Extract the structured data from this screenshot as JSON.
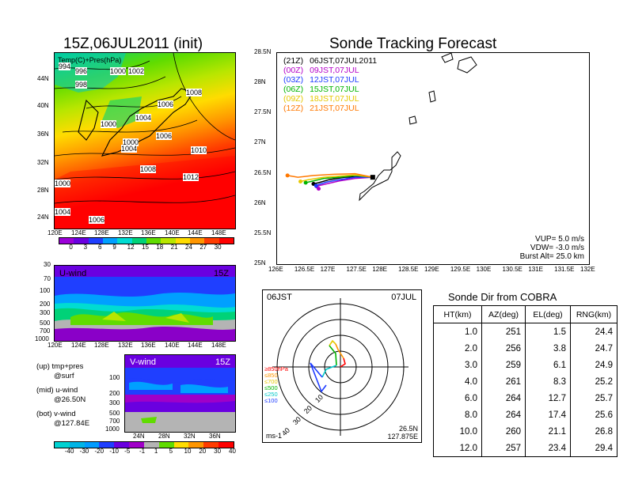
{
  "left_map": {
    "title": "15Z,06JUL2011 (init)",
    "label": "Temp(C)+Pres(hPa)",
    "lat_ticks": [
      "44N",
      "40N",
      "36N",
      "32N",
      "28N",
      "24N"
    ],
    "lon_ticks": [
      "120E",
      "124E",
      "128E",
      "132E",
      "136E",
      "140E",
      "144E",
      "148E"
    ],
    "isobar_labels": [
      "994",
      "996",
      "998",
      "1000",
      "1002",
      "1000",
      "1006",
      "1008",
      "1004",
      "1000",
      "1002",
      "1004",
      "1006",
      "1010",
      "1008",
      "1012",
      "1000",
      "1004",
      "1006"
    ],
    "colorbar_ticks": [
      "0",
      "3",
      "6",
      "9",
      "12",
      "15",
      "18",
      "21",
      "24",
      "27",
      "30"
    ],
    "colorbar_colors": [
      "#9b00d8",
      "#6a00e0",
      "#1f3fff",
      "#00a0ff",
      "#00dcd2",
      "#00d278",
      "#60dc00",
      "#b8e600",
      "#ffdc00",
      "#ff9600",
      "#ff3c00",
      "#ff0000"
    ]
  },
  "u_wind": {
    "label": "U-wind",
    "time": "15Z",
    "y_ticks": [
      "30",
      "70",
      "100",
      "200",
      "300",
      "500",
      "700",
      "1000"
    ],
    "x_ticks": [
      "120E",
      "124E",
      "128E",
      "132E",
      "136E",
      "140E",
      "144E",
      "148E"
    ]
  },
  "v_wind": {
    "label": "V-wind",
    "time": "15Z",
    "y_ticks": [
      "100",
      "200",
      "300",
      "500",
      "700",
      "1000"
    ],
    "x_ticks": [
      "24N",
      "28N",
      "32N",
      "36N"
    ],
    "colorbar_ticks": [
      "-40",
      "-30",
      "-20",
      "-10",
      "-5",
      "-1",
      "1",
      "5",
      "10",
      "20",
      "30",
      "40"
    ],
    "colorbar_colors": [
      "#00d2d2",
      "#00b4e6",
      "#009bff",
      "#1f3fff",
      "#6a00e0",
      "#a000c8",
      "#b4b4b4",
      "#60dc00",
      "#ffdc00",
      "#ff9600",
      "#ff3c00",
      "#ff0000"
    ]
  },
  "legend_notes": [
    {
      "line1": "(up) tmp+pres",
      "line2": "@surf"
    },
    {
      "line1": "(mid) u-wind",
      "line2": "@26.50N"
    },
    {
      "line1": "(bot) v-wind",
      "line2": "@127.84E"
    }
  ],
  "tracking": {
    "title": "Sonde Tracking Forecast",
    "entries": [
      {
        "code": "(21Z)",
        "text": "06JST,07JUL2011",
        "color": "#000000"
      },
      {
        "code": "(00Z)",
        "text": "09JST,07JUL",
        "color": "#b400c8"
      },
      {
        "code": "(03Z)",
        "text": "12JST,07JUL",
        "color": "#1e3cff"
      },
      {
        "code": "(06Z)",
        "text": "15JST,07JUL",
        "color": "#00b400"
      },
      {
        "code": "(09Z)",
        "text": "18JST,07JUL",
        "color": "#e6c800"
      },
      {
        "code": "(12Z)",
        "text": "21JST,07JUL",
        "color": "#ff7800"
      }
    ],
    "params": [
      "VUP= 5.0 m/s",
      "VDW= -3.0 m/s",
      "Burst Alt= 25.0 km"
    ],
    "lat_ticks": [
      "28.5N",
      "28N",
      "27.5N",
      "27N",
      "26.5N",
      "26N",
      "25.5N",
      "25N"
    ],
    "lon_ticks": [
      "126E",
      "126.5E",
      "127E",
      "127.5E",
      "128E",
      "128.5E",
      "129E",
      "129.5E",
      "130E",
      "130.5E",
      "131E",
      "131.5E",
      "132E"
    ]
  },
  "chart_data": [
    {
      "type": "line",
      "title": "Sonde Tracking Forecast",
      "xlabel": "",
      "ylabel": "",
      "xlim": [
        126,
        132
      ],
      "ylim": [
        25,
        28.5
      ],
      "launch": {
        "lon": 127.84,
        "lat": 26.44
      },
      "series": [
        {
          "name": "(21Z) 06JST,07JUL2011",
          "color": "#000000",
          "lon": [
            127.84,
            127.6,
            127.3,
            127.0,
            126.8,
            126.7
          ],
          "lat": [
            26.44,
            26.45,
            26.44,
            26.4,
            26.35,
            26.33
          ]
        },
        {
          "name": "(00Z) 09JST,07JUL",
          "color": "#b400c8",
          "lon": [
            127.84,
            127.5,
            127.2,
            126.95,
            126.8,
            126.75,
            126.8
          ],
          "lat": [
            26.44,
            26.42,
            26.38,
            26.33,
            26.3,
            26.27,
            26.25
          ]
        },
        {
          "name": "(03Z) 12JST,07JUL",
          "color": "#1e3cff",
          "lon": [
            127.84,
            127.5,
            127.2,
            126.95,
            126.8,
            126.75
          ],
          "lat": [
            26.44,
            26.44,
            26.4,
            26.36,
            26.32,
            26.3
          ]
        },
        {
          "name": "(06Z) 15JST,07JUL",
          "color": "#00b400",
          "lon": [
            127.84,
            127.5,
            127.2,
            126.9,
            126.7,
            126.55
          ],
          "lat": [
            26.44,
            26.47,
            26.44,
            26.42,
            26.38,
            26.35
          ]
        },
        {
          "name": "(09Z) 18JST,07JUL",
          "color": "#e6c800",
          "lon": [
            127.84,
            127.5,
            127.2,
            126.9,
            126.6,
            126.45
          ],
          "lat": [
            26.44,
            26.48,
            26.46,
            26.44,
            26.4,
            26.37
          ]
        },
        {
          "name": "(12Z) 21JST,07JUL",
          "color": "#ff7800",
          "lon": [
            127.84,
            127.5,
            127.1,
            126.7,
            126.4,
            126.2
          ],
          "lat": [
            26.44,
            26.5,
            26.49,
            26.47,
            26.44,
            26.47
          ]
        }
      ]
    },
    {
      "type": "table",
      "title": "Sonde Dir from COBRA",
      "columns": [
        "HT(km)",
        "AZ(deg)",
        "EL(deg)",
        "RNG(km)"
      ],
      "rows": [
        [
          "1.0",
          "251",
          "1.5",
          "24.4"
        ],
        [
          "2.0",
          "256",
          "3.8",
          "24.7"
        ],
        [
          "3.0",
          "259",
          "6.1",
          "24.9"
        ],
        [
          "4.0",
          "261",
          "8.3",
          "25.2"
        ],
        [
          "6.0",
          "264",
          "12.7",
          "25.7"
        ],
        [
          "8.0",
          "264",
          "17.4",
          "25.6"
        ],
        [
          "10.0",
          "260",
          "21.1",
          "26.8"
        ],
        [
          "12.0",
          "257",
          "23.4",
          "29.4"
        ]
      ]
    }
  ],
  "hodograph": {
    "time": "06JST",
    "date": "07JUL",
    "lat": "26.5N",
    "lon": "127.875E",
    "units": "ms-1",
    "ring_labels": [
      "10",
      "20",
      "30",
      "40"
    ],
    "level_legend": [
      {
        "text": "≥850hPa",
        "color": "#ff0000"
      },
      {
        "text": "≤850",
        "color": "#ff9600"
      },
      {
        "text": "≤700",
        "color": "#e6c800"
      },
      {
        "text": "≤500",
        "color": "#00b400"
      },
      {
        "text": "≤250",
        "color": "#00c8c8"
      },
      {
        "text": "≤100",
        "color": "#1e3cff"
      }
    ]
  }
}
